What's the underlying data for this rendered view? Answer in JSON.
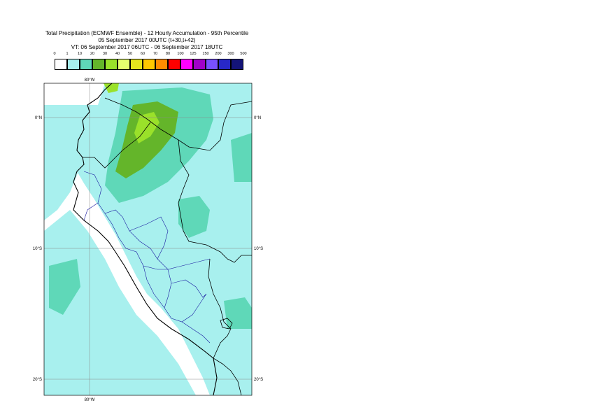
{
  "title": {
    "line1": "Total Precipitation (ECMWF Ensemble) - 12 Hourly Accumulation - 95th Percentile",
    "line2": "05 September 2017 00UTC (t+30,t+42)",
    "line3": "VT: 06 September 2017 06UTC - 06 September 2017 18UTC"
  },
  "legend": {
    "thresholds": [
      "0",
      "1",
      "10",
      "20",
      "30",
      "40",
      "50",
      "60",
      "70",
      "80",
      "100",
      "125",
      "150",
      "200",
      "300",
      "500"
    ],
    "colors": [
      "#ffffff",
      "#a8f0ee",
      "#5fd8b8",
      "#64b52a",
      "#9ae12a",
      "#e6ff6e",
      "#e6e61e",
      "#ffc800",
      "#ff8c00",
      "#ff0000",
      "#ff00ff",
      "#a000c8",
      "#7850ff",
      "#2828c8",
      "#141478"
    ]
  },
  "map": {
    "labels": {
      "lon_top": "80°W",
      "lon_bottom": "80°W",
      "lat_0_left": "0°N",
      "lat_0_right": "0°N",
      "lat_10_left": "10°S",
      "lat_10_right": "10°S",
      "lat_20_left": "20°S",
      "lat_20_right": "20°S"
    },
    "colors": {
      "ocean": "#ffffff",
      "light_precip": "#a8f0ee",
      "moderate_precip": "#5fd8b8",
      "heavy_precip": "#64b52a",
      "very_heavy_precip": "#9ae12a",
      "coast": "#000000",
      "borders": "#1a1aa0",
      "grid": "#888888"
    }
  }
}
